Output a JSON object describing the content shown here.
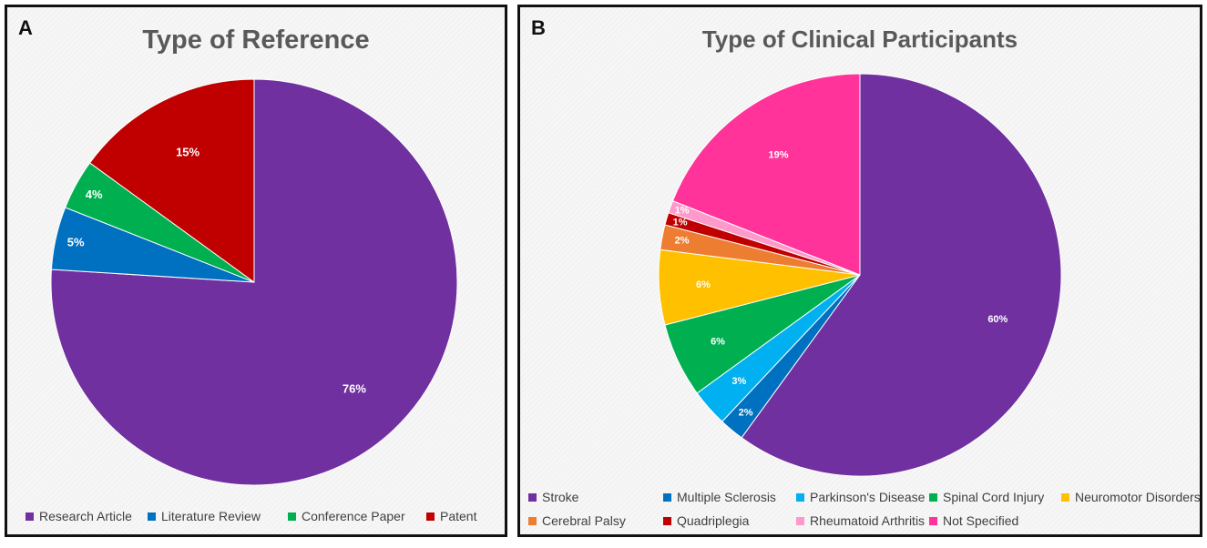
{
  "chart_data": [
    {
      "panel": "A",
      "type": "pie",
      "title": "Type of Reference",
      "legend_position": "bottom",
      "slices": [
        {
          "label": "Research Article",
          "value": 76,
          "display": "76%",
          "color": "#7030a0"
        },
        {
          "label": "Literature Review",
          "value": 5,
          "display": "5%",
          "color": "#0070c0"
        },
        {
          "label": "Conference Paper",
          "value": 4,
          "display": "4%",
          "color": "#00b050"
        },
        {
          "label": "Patent",
          "value": 15,
          "display": "15%",
          "color": "#c00000"
        }
      ]
    },
    {
      "panel": "B",
      "type": "pie",
      "title": "Type of Clinical Participants",
      "legend_position": "bottom",
      "slices": [
        {
          "label": "Stroke",
          "value": 60,
          "display": "60%",
          "color": "#7030a0"
        },
        {
          "label": "Multiple Sclerosis",
          "value": 2,
          "display": "2%",
          "color": "#0070c0"
        },
        {
          "label": "Parkinson's Disease",
          "value": 3,
          "display": "3%",
          "color": "#00b0f0"
        },
        {
          "label": "Spinal Cord Injury",
          "value": 6,
          "display": "6%",
          "color": "#00b050"
        },
        {
          "label": "Neuromotor Disorders",
          "value": 6,
          "display": "6%",
          "color": "#ffc000"
        },
        {
          "label": "Cerebral Palsy",
          "value": 2,
          "display": "2%",
          "color": "#ed7d31"
        },
        {
          "label": "Quadriplegia",
          "value": 1,
          "display": "1%",
          "color": "#c00000"
        },
        {
          "label": "Rheumatoid Arthritis",
          "value": 1,
          "display": "1%",
          "color": "#ff99cc"
        },
        {
          "label": "Not Specified",
          "value": 19,
          "display": "19%",
          "color": "#ff3399"
        }
      ]
    }
  ]
}
